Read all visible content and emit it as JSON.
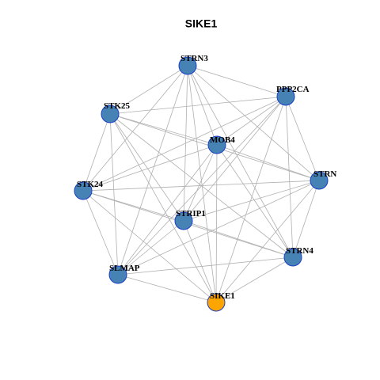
{
  "title": "SIKE1",
  "nodes": [
    {
      "label": "STRN3"
    },
    {
      "label": "PPP2CA"
    },
    {
      "label": "STK25"
    },
    {
      "label": "MOB4"
    },
    {
      "label": "STRN"
    },
    {
      "label": "STK24"
    },
    {
      "label": "STRIP1"
    },
    {
      "label": "STRN4"
    },
    {
      "label": "SLMAP"
    },
    {
      "label": "SIKE1"
    }
  ]
}
